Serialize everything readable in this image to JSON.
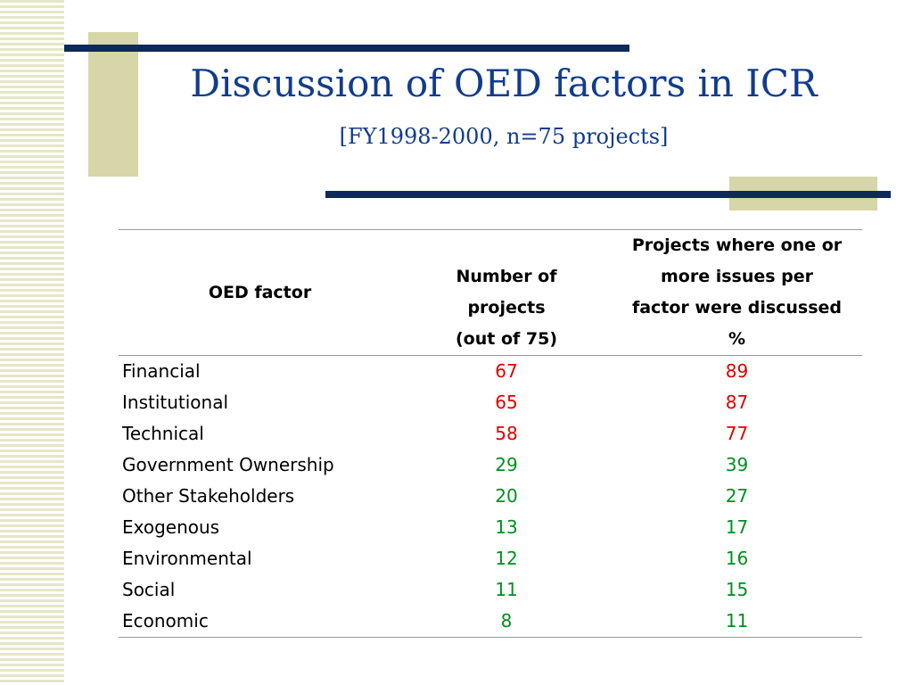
{
  "slide": {
    "title": "Discussion of OED factors in ICR",
    "subtitle": "[FY1998-2000, n=75 projects]"
  },
  "colors": {
    "navy": "#0e2a5a",
    "tan": "#d6d6a8",
    "title_blue": "#123c8c",
    "high_value_red": "#e00000",
    "low_value_green": "#00901e"
  },
  "table": {
    "headers": {
      "factor": "OED factor",
      "number_line1": "Number of",
      "number_line2": "projects",
      "number_line3": "(out of 75)",
      "pct_line1": "Projects where one or",
      "pct_line2": "more issues per",
      "pct_line3": "factor were discussed",
      "pct_line4": "%"
    },
    "rows": [
      {
        "factor": "Financial",
        "number": "67",
        "pct": "89",
        "color": "red"
      },
      {
        "factor": "Institutional",
        "number": "65",
        "pct": "87",
        "color": "red"
      },
      {
        "factor": "Technical",
        "number": "58",
        "pct": "77",
        "color": "red"
      },
      {
        "factor": "Government Ownership",
        "number": "29",
        "pct": "39",
        "color": "green"
      },
      {
        "factor": "Other Stakeholders",
        "number": "20",
        "pct": "27",
        "color": "green"
      },
      {
        "factor": "Exogenous",
        "number": "13",
        "pct": "17",
        "color": "green"
      },
      {
        "factor": "Environmental",
        "number": "12",
        "pct": "16",
        "color": "green"
      },
      {
        "factor": "Social",
        "number": "11",
        "pct": "15",
        "color": "green"
      },
      {
        "factor": "Economic",
        "number": "8",
        "pct": "11",
        "color": "green"
      }
    ]
  }
}
